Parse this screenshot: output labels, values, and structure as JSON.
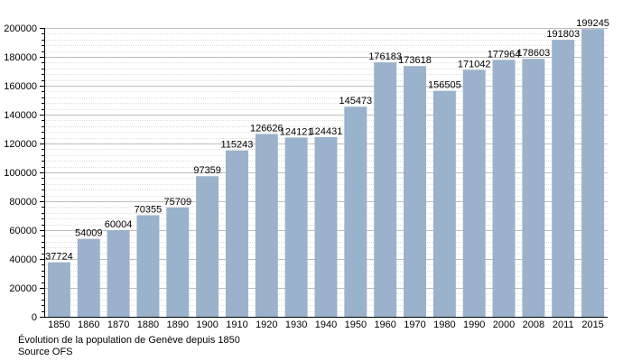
{
  "chart_data": {
    "type": "bar",
    "categories": [
      "1850",
      "1860",
      "1870",
      "1880",
      "1890",
      "1900",
      "1910",
      "1920",
      "1930",
      "1940",
      "1950",
      "1960",
      "1970",
      "1980",
      "1990",
      "2000",
      "2008",
      "2011",
      "2015"
    ],
    "values": [
      37724,
      54009,
      60004,
      70355,
      75709,
      97359,
      115243,
      126626,
      124121,
      124431,
      145473,
      176183,
      173618,
      156505,
      171042,
      177964,
      178603,
      191803,
      199245
    ],
    "ylim": [
      0,
      200000
    ],
    "yticks": [
      0,
      20000,
      40000,
      60000,
      80000,
      100000,
      120000,
      140000,
      160000,
      180000,
      200000
    ],
    "grid": true,
    "bar_color": "#9ab2cb",
    "grid_color": "#bdbdbd"
  },
  "caption": {
    "line1": "Évolution de la population de Genève depuis 1850",
    "line2": "Source OFS"
  }
}
